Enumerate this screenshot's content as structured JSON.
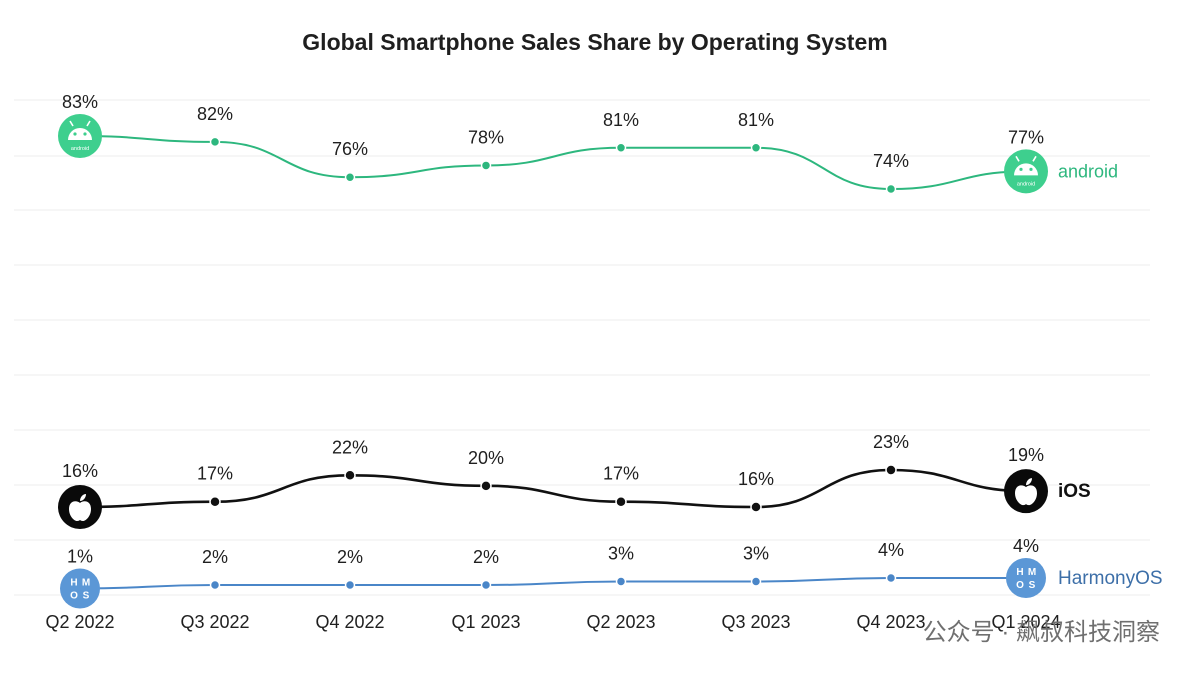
{
  "chart_data": {
    "type": "line",
    "title": "Global Smartphone Sales Share by Operating System",
    "categories": [
      "Q2 2022",
      "Q3 2022",
      "Q4 2022",
      "Q1 2023",
      "Q2 2023",
      "Q3 2023",
      "Q4 2023",
      "Q1 2024"
    ],
    "series": [
      {
        "name": "android",
        "color": "#2db77e",
        "values": [
          83,
          82,
          76,
          78,
          81,
          81,
          74,
          77
        ],
        "labels": [
          "83%",
          "82%",
          "76%",
          "78%",
          "81%",
          "81%",
          "74%",
          "77%"
        ],
        "icon": "android-icon"
      },
      {
        "name": "iOS",
        "color": "#111111",
        "values": [
          16,
          17,
          22,
          20,
          17,
          16,
          23,
          19
        ],
        "labels": [
          "16%",
          "17%",
          "22%",
          "20%",
          "17%",
          "16%",
          "23%",
          "19%"
        ],
        "icon": "apple-icon"
      },
      {
        "name": "HarmonyOS",
        "color": "#4a86c8",
        "values": [
          1,
          2,
          2,
          2,
          3,
          3,
          4,
          4
        ],
        "labels": [
          "1%",
          "2%",
          "2%",
          "2%",
          "3%",
          "3%",
          "4%",
          "4%"
        ],
        "icon": "harmonyos-icon"
      }
    ],
    "ylim": [
      0,
      90
    ],
    "grid": true,
    "legend": "inline-right"
  },
  "icons": {
    "android_text": "android",
    "harmony_text": [
      "H",
      "M",
      "O",
      "S"
    ]
  },
  "watermark": "公众号 · 飙叔科技洞察"
}
